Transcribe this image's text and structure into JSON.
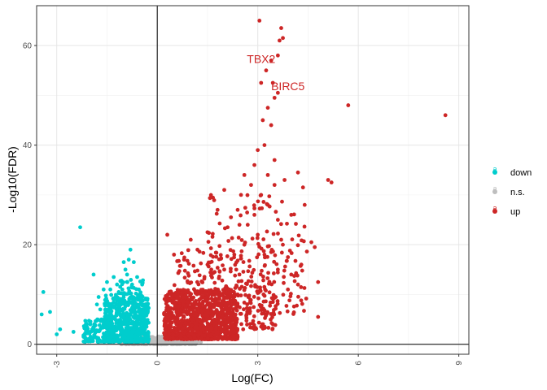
{
  "chart_data": {
    "type": "scatter",
    "title": "",
    "xlabel": "Log(FC)",
    "ylabel": "-Log10(FDR)",
    "xlim": [
      -3.6,
      9.3
    ],
    "ylim": [
      -2,
      68
    ],
    "x_ticks": [
      -3,
      0,
      3,
      6,
      9
    ],
    "x_tick_labels": [
      "-3",
      "0",
      "3",
      "6",
      "9"
    ],
    "y_ticks": [
      0,
      20,
      40,
      60
    ],
    "y_tick_labels": [
      "0",
      "20",
      "40",
      "60"
    ],
    "reference_lines": {
      "x": 0,
      "y": 0
    },
    "grid": true,
    "legend": {
      "position": "right",
      "glyph": "a",
      "entries": [
        {
          "name": "down",
          "color": "#00CDCD"
        },
        {
          "name": "n.s.",
          "color": "#BEBEBE"
        },
        {
          "name": "up",
          "color": "#CD2626"
        }
      ]
    },
    "series": [
      {
        "name": "down",
        "color": "#00CDCD",
        "points": [
          [
            -3.4,
            10.5
          ],
          [
            -3.45,
            6
          ],
          [
            -3.2,
            6.5
          ],
          [
            -3.0,
            2
          ],
          [
            -2.9,
            3
          ],
          [
            -2.3,
            23.5
          ],
          [
            -2.2,
            1.5
          ],
          [
            -2.0,
            4
          ],
          [
            -1.9,
            14
          ],
          [
            -1.8,
            8
          ],
          [
            -1.7,
            7
          ],
          [
            -1.75,
            9.5
          ],
          [
            -1.6,
            11
          ],
          [
            -1.5,
            12.5
          ],
          [
            -1.4,
            11
          ],
          [
            -1.3,
            13.5
          ],
          [
            -1.3,
            9
          ],
          [
            -1.2,
            12
          ],
          [
            -1.15,
            10.5
          ],
          [
            -1.0,
            16.5
          ],
          [
            -0.95,
            15
          ],
          [
            -0.9,
            14
          ],
          [
            -0.8,
            19
          ],
          [
            -0.85,
            17
          ],
          [
            -0.7,
            16.5
          ],
          [
            -0.75,
            12
          ],
          [
            -0.6,
            13.5
          ],
          [
            -0.55,
            11
          ],
          [
            -0.5,
            10
          ],
          [
            -0.45,
            12
          ],
          [
            -2.5,
            2.5
          ],
          [
            -2.1,
            3.5
          ],
          [
            -1.4,
            5
          ],
          [
            -1.1,
            6
          ],
          [
            -0.6,
            8
          ],
          [
            -1.6,
            4.5
          ],
          [
            -0.4,
            6
          ],
          [
            -0.35,
            9
          ],
          [
            -0.3,
            7
          ]
        ],
        "cloud": [
          {
            "x_range": [
              -1.6,
              -0.25
            ],
            "y_range": [
              0.5,
              10
            ],
            "n": 520
          },
          {
            "x_range": [
              -2.2,
              -1.4
            ],
            "y_range": [
              0.5,
              5
            ],
            "n": 110
          },
          {
            "x_range": [
              -1.2,
              -0.4
            ],
            "y_range": [
              4,
              13
            ],
            "n": 90
          }
        ]
      },
      {
        "name": "n.s.",
        "color": "#BEBEBE",
        "points": [
          [
            1.0,
            1.2
          ],
          [
            1.2,
            0.9
          ],
          [
            1.5,
            1.1
          ],
          [
            -1.2,
            0.6
          ],
          [
            1.3,
            0.4
          ]
        ],
        "cloud": [
          {
            "x_range": [
              -1.1,
              1.2
            ],
            "y_range": [
              0.0,
              1.6
            ],
            "n": 480
          }
        ]
      },
      {
        "name": "up",
        "color": "#CD2626",
        "points": [
          [
            3.05,
            65
          ],
          [
            3.6,
            58
          ],
          [
            3.4,
            57
          ],
          [
            3.7,
            63.5
          ],
          [
            3.75,
            61.5
          ],
          [
            3.65,
            61
          ],
          [
            3.1,
            52.5
          ],
          [
            3.45,
            52.5
          ],
          [
            3.5,
            49.5
          ],
          [
            3.6,
            50.5
          ],
          [
            3.25,
            55
          ],
          [
            3.3,
            47.5
          ],
          [
            3.15,
            45
          ],
          [
            3.4,
            44
          ],
          [
            3.0,
            39
          ],
          [
            3.2,
            40
          ],
          [
            3.5,
            37
          ],
          [
            2.9,
            36
          ],
          [
            5.7,
            48
          ],
          [
            8.6,
            46
          ],
          [
            4.35,
            31.5
          ],
          [
            4.2,
            34.5
          ],
          [
            5.1,
            33
          ],
          [
            5.2,
            32.5
          ],
          [
            2.0,
            31
          ],
          [
            2.5,
            30
          ],
          [
            2.6,
            34
          ],
          [
            2.8,
            32
          ],
          [
            3.1,
            30
          ],
          [
            3.3,
            28
          ],
          [
            1.8,
            27
          ],
          [
            2.2,
            25.5
          ],
          [
            3.6,
            25
          ],
          [
            4.0,
            26
          ],
          [
            2.7,
            24
          ],
          [
            3.0,
            22
          ],
          [
            4.6,
            20.5
          ],
          [
            4.8,
            12.5
          ],
          [
            4.8,
            5.5
          ],
          [
            1.0,
            21
          ],
          [
            1.5,
            22.5
          ],
          [
            1.2,
            19
          ],
          [
            4.7,
            19.5
          ],
          [
            3.7,
            21
          ],
          [
            2.3,
            18
          ],
          [
            3.4,
            18.5
          ],
          [
            3.9,
            17.5
          ],
          [
            3.8,
            33
          ],
          [
            2.4,
            27
          ],
          [
            2.9,
            26
          ],
          [
            3.5,
            32
          ],
          [
            4.4,
            28
          ],
          [
            3.3,
            34
          ],
          [
            2.1,
            23.5
          ],
          [
            0.3,
            22
          ],
          [
            0.5,
            18
          ],
          [
            0.8,
            17
          ],
          [
            1.5,
            16
          ],
          [
            2.0,
            15
          ],
          [
            2.6,
            20
          ],
          [
            3.2,
            18
          ],
          [
            3.6,
            15
          ],
          [
            4.0,
            14
          ],
          [
            4.3,
            16
          ],
          [
            4.2,
            12
          ],
          [
            3.9,
            11
          ]
        ],
        "cloud": [
          {
            "x_range": [
              0.2,
              2.4
            ],
            "y_range": [
              1,
              11
            ],
            "n": 900
          },
          {
            "x_range": [
              0.5,
              3.6
            ],
            "y_range": [
              3,
              19
            ],
            "n": 320
          },
          {
            "x_range": [
              1.5,
              4.5
            ],
            "y_range": [
              6,
              30
            ],
            "n": 160
          }
        ]
      }
    ],
    "annotations": [
      {
        "text": "TBX2",
        "x": 3.1,
        "y": 56.5,
        "color": "#CD2626"
      },
      {
        "text": "BIRC5",
        "x": 3.9,
        "y": 51,
        "color": "#CD2626"
      }
    ]
  }
}
